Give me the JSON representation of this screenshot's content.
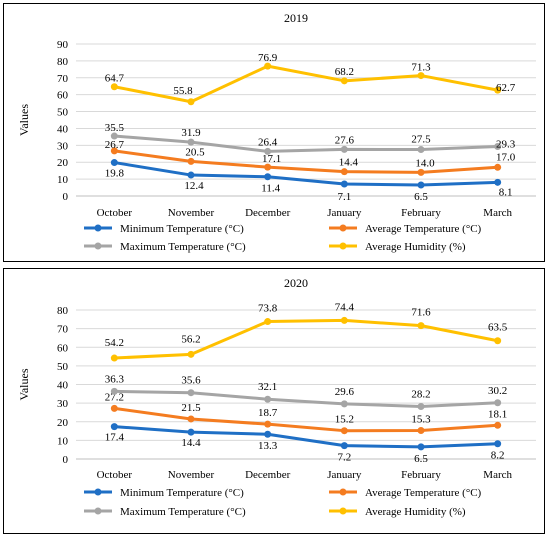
{
  "chart_data": [
    {
      "type": "line",
      "title": "2019",
      "xlabel": "",
      "ylabel": "Values",
      "ylim": [
        0,
        90
      ],
      "yticks": [
        0,
        10,
        20,
        30,
        40,
        50,
        60,
        70,
        80,
        90
      ],
      "grid": true,
      "legend_position": "bottom",
      "categories": [
        "October",
        "November",
        "December",
        "January",
        "February",
        "March"
      ],
      "series": [
        {
          "name": "Minimum Temperature (°C)",
          "color": "#1f6fc5",
          "values": [
            19.8,
            12.4,
            11.4,
            7.1,
            6.5,
            8.1
          ]
        },
        {
          "name": "Average Temperature (°C)",
          "color": "#f47c20",
          "values": [
            26.7,
            20.5,
            17.1,
            14.4,
            14.0,
            17.0
          ]
        },
        {
          "name": "Maximum Temperature (°C)",
          "color": "#a5a5a5",
          "values": [
            35.5,
            31.9,
            26.4,
            27.6,
            27.5,
            29.3
          ]
        },
        {
          "name": "Average Humidity (%)",
          "color": "#ffc000",
          "values": [
            64.7,
            55.8,
            76.9,
            68.2,
            71.3,
            62.7
          ]
        }
      ]
    },
    {
      "type": "line",
      "title": "2020",
      "xlabel": "",
      "ylabel": "Values",
      "ylim": [
        0,
        80
      ],
      "yticks": [
        0,
        10,
        20,
        30,
        40,
        50,
        60,
        70,
        80
      ],
      "grid": true,
      "legend_position": "bottom",
      "categories": [
        "October",
        "November",
        "December",
        "January",
        "February",
        "March"
      ],
      "series": [
        {
          "name": "Minimum Temperature (°C)",
          "color": "#1f6fc5",
          "values": [
            17.4,
            14.4,
            13.3,
            7.2,
            6.5,
            8.2
          ]
        },
        {
          "name": "Average Temperature (°C)",
          "color": "#f47c20",
          "values": [
            27.2,
            21.5,
            18.7,
            15.2,
            15.3,
            18.1
          ]
        },
        {
          "name": "Maximum Temperature (°C)",
          "color": "#a5a5a5",
          "values": [
            36.3,
            35.6,
            32.1,
            29.6,
            28.2,
            30.2
          ]
        },
        {
          "name": "Average Humidity (%)",
          "color": "#ffc000",
          "values": [
            54.2,
            56.2,
            73.8,
            74.4,
            71.6,
            63.5
          ]
        }
      ]
    }
  ]
}
